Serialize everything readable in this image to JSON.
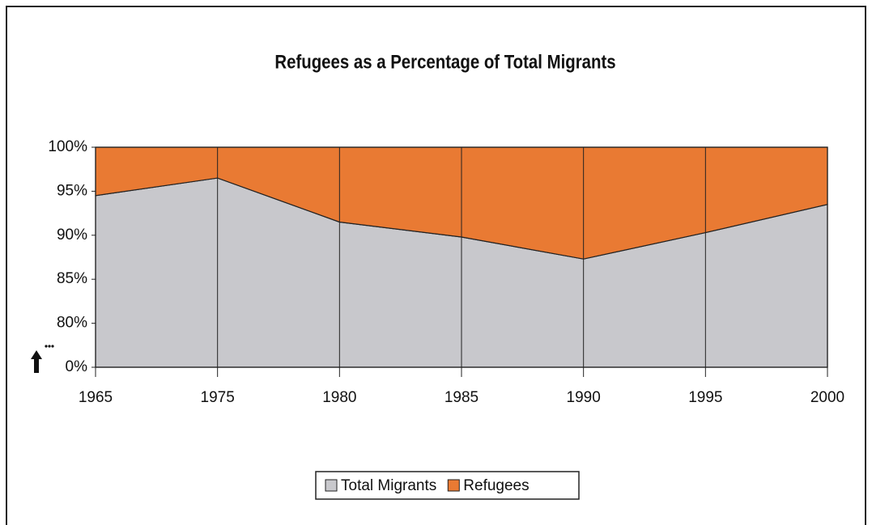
{
  "chart_data": {
    "type": "stacked_area",
    "title": "Refugees as a Percentage of Total Migrants",
    "categories": [
      "1965",
      "1975",
      "1980",
      "1985",
      "1990",
      "1995",
      "2000"
    ],
    "series": [
      {
        "name": "Total Migrants",
        "color": "#c8c8cc",
        "values": [
          94.5,
          96.5,
          91.5,
          89.8,
          87.3,
          90.3,
          93.5
        ]
      },
      {
        "name": "Refugees",
        "color": "#e97a33",
        "values": [
          5.5,
          3.5,
          8.5,
          10.2,
          12.7,
          9.7,
          6.5
        ]
      }
    ],
    "ylim": [
      0,
      100
    ],
    "ybreak": [
      0,
      80
    ],
    "yticks": [
      {
        "value": 0,
        "label": "0%"
      },
      {
        "value": 80,
        "label": "80%"
      },
      {
        "value": 85,
        "label": "85%"
      },
      {
        "value": 90,
        "label": "90%"
      },
      {
        "value": 95,
        "label": "95%"
      },
      {
        "value": 100,
        "label": "100%"
      }
    ],
    "grid": true,
    "legend": "bottom"
  }
}
